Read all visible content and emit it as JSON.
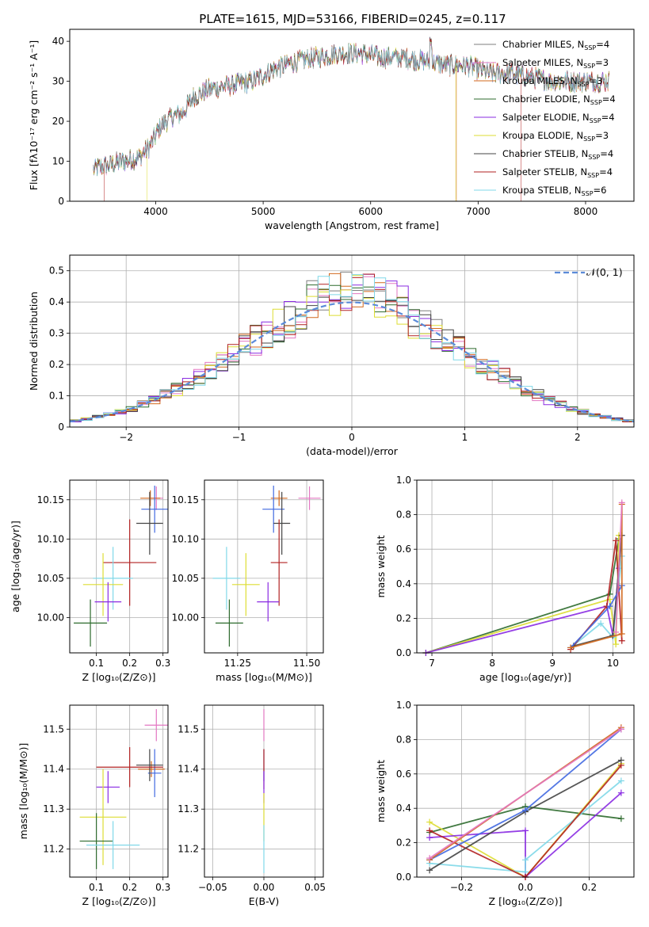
{
  "figure": {
    "title": "PLATE=1615, MJD=53166, FIBERID=0245, z=0.117"
  },
  "palette": [
    "#7f7f7f",
    "#e377c2",
    "#d2691e",
    "#2e6b2e",
    "#8a2be2",
    "#dddd33",
    "#444444",
    "#b22222",
    "#80d8e8"
  ],
  "chart_data": [
    {
      "id": "spectrum",
      "type": "line",
      "title": "PLATE=1615, MJD=53166, FIBERID=0245, z=0.117",
      "xlabel": "wavelength [Angstrom, rest frame]",
      "ylabel": "Flux [fλ10⁻¹⁷ erg cm⁻² s⁻¹ A⁻¹]",
      "xlim": [
        3200,
        8450
      ],
      "ylim": [
        0,
        43
      ],
      "xticks": [
        4000,
        5000,
        6000,
        7000,
        8000
      ],
      "yticks": [
        0,
        10,
        20,
        30,
        40
      ],
      "grid": false,
      "legend": "top-right",
      "continuum": {
        "x": [
          3420,
          3550,
          3700,
          3850,
          3950,
          4050,
          4150,
          4250,
          4350,
          4500,
          4700,
          4900,
          5100,
          5300,
          5500,
          5700,
          5900,
          6100,
          6300,
          6500,
          6700,
          6900,
          7100,
          7300,
          7500,
          7700,
          7900,
          8100,
          8200
        ],
        "y": [
          8,
          9,
          10,
          11,
          14,
          19,
          21,
          22,
          26,
          28,
          29,
          30,
          33,
          35,
          36,
          37,
          37,
          36,
          36,
          35,
          34,
          34,
          32,
          32,
          31,
          30,
          30,
          30,
          30
        ]
      },
      "series": [
        {
          "name": "Chabrier MILES, N_SSP=4",
          "label_main": "Chabrier MILES, N",
          "label_sub": "SSP",
          "label_tail": "=4",
          "color": "#7f7f7f"
        },
        {
          "name": "Salpeter MILES, N_SSP=3",
          "label_main": "Salpeter MILES, N",
          "label_sub": "SSP",
          "label_tail": "=3",
          "color": "#e377c2"
        },
        {
          "name": "Kroupa MILES, N_SSP=3",
          "label_main": "Kroupa MILES, N",
          "label_sub": "SSP",
          "label_tail": "=3",
          "color": "#d2691e"
        },
        {
          "name": "Chabrier ELODIE, N_SSP=4",
          "label_main": "Chabrier ELODIE, N",
          "label_sub": "SSP",
          "label_tail": "=4",
          "color": "#2e6b2e"
        },
        {
          "name": "Salpeter ELODIE, N_SSP=4",
          "label_main": "Salpeter ELODIE, N",
          "label_sub": "SSP",
          "label_tail": "=4",
          "color": "#8a2be2"
        },
        {
          "name": "Kroupa ELODIE, N_SSP=3",
          "label_main": "Kroupa ELODIE, N",
          "label_sub": "SSP",
          "label_tail": "=3",
          "color": "#dddd33"
        },
        {
          "name": "Chabrier STELIB, N_SSP=4",
          "label_main": "Chabrier STELIB, N",
          "label_sub": "SSP",
          "label_tail": "=4",
          "color": "#444444"
        },
        {
          "name": "Salpeter STELIB, N_SSP=4",
          "label_main": "Salpeter STELIB, N",
          "label_sub": "SSP",
          "label_tail": "=4",
          "color": "#b22222"
        },
        {
          "name": "Kroupa STELIB, N_SSP=6",
          "label_main": "Kroupa STELIB, N",
          "label_sub": "SSP",
          "label_tail": "=6",
          "color": "#80d8e8"
        }
      ],
      "drops": [
        {
          "x": 3520,
          "series": 7
        },
        {
          "x": 3920,
          "series": 5
        },
        {
          "x": 6790,
          "series": 5
        },
        {
          "x": 6800,
          "series": 2
        },
        {
          "x": 7400,
          "series": 7
        }
      ]
    },
    {
      "id": "residuals",
      "type": "histogram",
      "xlabel": "(data-model)/error",
      "ylabel": "Normed distribution",
      "xlim": [
        -2.5,
        2.5
      ],
      "ylim": [
        0,
        0.55
      ],
      "xticks": [
        -2,
        -1,
        0,
        1,
        2
      ],
      "yticks": [
        0.0,
        0.1,
        0.2,
        0.3,
        0.4,
        0.5
      ],
      "grid": true,
      "legend": "top-right",
      "bin_width": 0.1,
      "bin_start": -2.5,
      "gaussian": {
        "label": "𝒩(0, 1)",
        "mean": 0,
        "sigma": 1
      }
    },
    {
      "id": "age_vs_Z",
      "type": "errorbar",
      "xlabel": "Z [log₁₀(Z/Z⊙)]",
      "ylabel": "age  [log₁₀(age/yr)]",
      "xlim": [
        0.02,
        0.315
      ],
      "ylim": [
        9.955,
        10.175
      ],
      "xticks": [
        0.1,
        0.2,
        0.3
      ],
      "yticks": [
        10.0,
        10.05,
        10.1,
        10.15
      ],
      "xtick_labels": [
        "0.1",
        "0.2",
        "0.3"
      ],
      "ytick_labels": [
        "10.00",
        "10.05",
        "10.10",
        "10.15"
      ],
      "points": [
        {
          "x": 0.28,
          "y": 10.152,
          "xerr": 0.02,
          "yerr": 0.015,
          "color": "#e377c2"
        },
        {
          "x": 0.262,
          "y": 10.152,
          "xerr": 0.03,
          "yerr": 0.01,
          "color": "#d2691e"
        },
        {
          "x": 0.275,
          "y": 10.138,
          "xerr": 0.04,
          "yerr": 0.03,
          "color": "#4169e1"
        },
        {
          "x": 0.26,
          "y": 10.12,
          "xerr": 0.04,
          "yerr": 0.04,
          "color": "#444444"
        },
        {
          "x": 0.2,
          "y": 10.07,
          "xerr": 0.08,
          "yerr": 0.055,
          "color": "#b22222"
        },
        {
          "x": 0.15,
          "y": 10.05,
          "xerr": 0.06,
          "yerr": 0.04,
          "color": "#80d8e8"
        },
        {
          "x": 0.12,
          "y": 10.042,
          "xerr": 0.06,
          "yerr": 0.04,
          "color": "#dddd33"
        },
        {
          "x": 0.135,
          "y": 10.02,
          "xerr": 0.04,
          "yerr": 0.025,
          "color": "#8a2be2"
        },
        {
          "x": 0.082,
          "y": 9.993,
          "xerr": 0.05,
          "yerr": 0.03,
          "color": "#2e6b2e"
        }
      ]
    },
    {
      "id": "age_vs_mass",
      "type": "errorbar",
      "xlabel": "mass [log₁₀(M/M⊙)]",
      "ylabel": "",
      "xlim": [
        11.13,
        11.56
      ],
      "ylim": [
        9.955,
        10.175
      ],
      "xticks": [
        11.25,
        11.5
      ],
      "yticks": [
        10.0,
        10.05,
        10.1,
        10.15
      ],
      "xtick_labels": [
        "11.25",
        "11.50"
      ],
      "ytick_labels": [
        "10.00",
        "10.05",
        "10.10",
        "10.15"
      ],
      "points": [
        {
          "x": 11.51,
          "y": 10.152,
          "xerr": 0.04,
          "yerr": 0.015,
          "color": "#e377c2"
        },
        {
          "x": 11.4,
          "y": 10.152,
          "xerr": 0.03,
          "yerr": 0.01,
          "color": "#d2691e"
        },
        {
          "x": 11.38,
          "y": 10.138,
          "xerr": 0.04,
          "yerr": 0.03,
          "color": "#4169e1"
        },
        {
          "x": 11.41,
          "y": 10.12,
          "xerr": 0.03,
          "yerr": 0.04,
          "color": "#444444"
        },
        {
          "x": 11.4,
          "y": 10.07,
          "xerr": 0.03,
          "yerr": 0.055,
          "color": "#b22222"
        },
        {
          "x": 11.21,
          "y": 10.05,
          "xerr": 0.05,
          "yerr": 0.04,
          "color": "#80d8e8"
        },
        {
          "x": 11.28,
          "y": 10.042,
          "xerr": 0.05,
          "yerr": 0.04,
          "color": "#dddd33"
        },
        {
          "x": 11.36,
          "y": 10.02,
          "xerr": 0.04,
          "yerr": 0.025,
          "color": "#8a2be2"
        },
        {
          "x": 11.22,
          "y": 9.993,
          "xerr": 0.05,
          "yerr": 0.03,
          "color": "#2e6b2e"
        }
      ]
    },
    {
      "id": "mass_vs_Z",
      "type": "errorbar",
      "xlabel": "Z [log₁₀(Z/Z⊙)]",
      "ylabel": "mass [log₁₀(M/M⊙)]",
      "xlim": [
        0.02,
        0.315
      ],
      "ylim": [
        11.13,
        11.56
      ],
      "xticks": [
        0.1,
        0.2,
        0.3
      ],
      "yticks": [
        11.2,
        11.3,
        11.4,
        11.5
      ],
      "xtick_labels": [
        "0.1",
        "0.2",
        "0.3"
      ],
      "ytick_labels": [
        "11.2",
        "11.3",
        "11.4",
        "11.5"
      ],
      "points": [
        {
          "x": 0.28,
          "y": 11.51,
          "xerr": 0.035,
          "yerr": 0.04,
          "color": "#e377c2"
        },
        {
          "x": 0.265,
          "y": 11.4,
          "xerr": 0.04,
          "yerr": 0.02,
          "color": "#d2691e"
        },
        {
          "x": 0.275,
          "y": 11.39,
          "xerr": 0.02,
          "yerr": 0.06,
          "color": "#4169e1"
        },
        {
          "x": 0.26,
          "y": 11.41,
          "xerr": 0.04,
          "yerr": 0.04,
          "color": "#444444"
        },
        {
          "x": 0.2,
          "y": 11.405,
          "xerr": 0.1,
          "yerr": 0.05,
          "color": "#b22222"
        },
        {
          "x": 0.135,
          "y": 11.355,
          "xerr": 0.035,
          "yerr": 0.04,
          "color": "#8a2be2"
        },
        {
          "x": 0.12,
          "y": 11.28,
          "xerr": 0.07,
          "yerr": 0.12,
          "color": "#dddd33"
        },
        {
          "x": 0.1,
          "y": 11.22,
          "xerr": 0.05,
          "yerr": 0.07,
          "color": "#2e6b2e"
        },
        {
          "x": 0.15,
          "y": 11.21,
          "xerr": 0.08,
          "yerr": 0.06,
          "color": "#80d8e8"
        }
      ]
    },
    {
      "id": "mass_vs_ebv",
      "type": "errorbar",
      "xlabel": "E(B-V)",
      "ylabel": "",
      "xlim": [
        -0.058,
        0.058
      ],
      "ylim": [
        11.13,
        11.56
      ],
      "xticks": [
        -0.05,
        0.0,
        0.05
      ],
      "yticks": [
        11.2,
        11.3,
        11.4,
        11.5
      ],
      "xtick_labels": [
        "−0.05",
        "0.00",
        "0.05"
      ],
      "ytick_labels": [
        "11.2",
        "11.3",
        "11.4",
        "11.5"
      ],
      "points": [
        {
          "x": 0.0,
          "y": 11.51,
          "xerr": 0.0,
          "yerr": 0.04,
          "color": "#e377c2"
        },
        {
          "x": 0.0,
          "y": 11.41,
          "xerr": 0.0,
          "yerr": 0.04,
          "color": "#4169e1"
        },
        {
          "x": 0.0,
          "y": 11.4,
          "xerr": 0.0,
          "yerr": 0.05,
          "color": "#b22222"
        },
        {
          "x": 0.0,
          "y": 11.355,
          "xerr": 0.0,
          "yerr": 0.04,
          "color": "#8a2be2"
        },
        {
          "x": 0.0,
          "y": 11.28,
          "xerr": 0.0,
          "yerr": 0.06,
          "color": "#dddd33"
        },
        {
          "x": 0.0,
          "y": 11.2,
          "xerr": 0.0,
          "yerr": 0.06,
          "color": "#80d8e8"
        }
      ]
    },
    {
      "id": "weight_vs_age",
      "type": "line",
      "xlabel": "age  [log₁₀(age/yr)]",
      "ylabel": "mass weight",
      "xlim": [
        6.75,
        10.35
      ],
      "ylim": [
        0,
        1
      ],
      "xticks": [
        7,
        8,
        9,
        10
      ],
      "yticks": [
        0.0,
        0.2,
        0.4,
        0.6,
        0.8,
        1.0
      ],
      "xtick_labels": [
        "7",
        "8",
        "9",
        "10"
      ],
      "ytick_labels": [
        "0.0",
        "0.2",
        "0.4",
        "0.6",
        "0.8",
        "1.0"
      ],
      "grid": true,
      "series": [
        {
          "color": "#2e6b2e",
          "x": [
            6.9,
            9.95,
            10.1
          ],
          "y": [
            0.0,
            0.34,
            0.66
          ]
        },
        {
          "color": "#dddd33",
          "x": [
            6.9,
            9.95,
            10.05,
            10.1
          ],
          "y": [
            0.0,
            0.31,
            0.05,
            0.68
          ]
        },
        {
          "color": "#8a2be2",
          "x": [
            6.9,
            9.9,
            10.0,
            10.1
          ],
          "y": [
            0.0,
            0.27,
            0.1,
            0.49
          ]
        },
        {
          "color": "#80d8e8",
          "x": [
            9.3,
            9.8,
            10.0,
            10.15
          ],
          "y": [
            0.03,
            0.17,
            0.09,
            0.56
          ]
        },
        {
          "color": "#b22222",
          "x": [
            9.3,
            9.9,
            10.05,
            10.15
          ],
          "y": [
            0.02,
            0.27,
            0.65,
            0.07
          ]
        },
        {
          "color": "#444444",
          "x": [
            9.35,
            10.0,
            10.15
          ],
          "y": [
            0.04,
            0.1,
            0.68
          ]
        },
        {
          "color": "#4169e1",
          "x": [
            9.3,
            9.95,
            10.15
          ],
          "y": [
            0.03,
            0.27,
            0.39
          ]
        },
        {
          "color": "#d2691e",
          "x": [
            9.3,
            10.15,
            10.15
          ],
          "y": [
            0.03,
            0.11,
            0.86
          ]
        },
        {
          "color": "#e377c2",
          "x": [
            10.05,
            10.15
          ],
          "y": [
            0.12,
            0.87
          ]
        }
      ]
    },
    {
      "id": "weight_vs_Z",
      "type": "line",
      "xlabel": "Z [log₁₀(Z/Z⊙)]",
      "ylabel": "mass weight",
      "xlim": [
        -0.34,
        0.34
      ],
      "ylim": [
        0,
        1
      ],
      "xticks": [
        -0.2,
        0.0,
        0.2
      ],
      "yticks": [
        0.0,
        0.2,
        0.4,
        0.6,
        0.8,
        1.0
      ],
      "xtick_labels": [
        "−0.2",
        "0.0",
        "0.2"
      ],
      "ytick_labels": [
        "0.0",
        "0.2",
        "0.4",
        "0.6",
        "0.8",
        "1.0"
      ],
      "grid": true,
      "series": [
        {
          "color": "#2e6b2e",
          "x": [
            -0.3,
            0.0,
            0.3
          ],
          "y": [
            0.26,
            0.41,
            0.34
          ]
        },
        {
          "color": "#dddd33",
          "x": [
            -0.3,
            0.0,
            0.3
          ],
          "y": [
            0.32,
            0.0,
            0.66
          ]
        },
        {
          "color": "#8a2be2",
          "x": [
            -0.3,
            0.0,
            0.0,
            0.3
          ],
          "y": [
            0.23,
            0.27,
            0.0,
            0.49
          ]
        },
        {
          "color": "#80d8e8",
          "x": [
            -0.3,
            0.0,
            0.0,
            0.3
          ],
          "y": [
            0.08,
            0.03,
            0.1,
            0.56
          ]
        },
        {
          "color": "#b22222",
          "x": [
            -0.3,
            0.0,
            0.3
          ],
          "y": [
            0.27,
            0.0,
            0.65
          ]
        },
        {
          "color": "#444444",
          "x": [
            -0.3,
            0.0,
            0.3
          ],
          "y": [
            0.04,
            0.38,
            0.68
          ]
        },
        {
          "color": "#4169e1",
          "x": [
            -0.3,
            0.0,
            0.3
          ],
          "y": [
            0.1,
            0.39,
            0.86
          ]
        },
        {
          "color": "#d2691e",
          "x": [
            -0.3,
            0.3
          ],
          "y": [
            0.1,
            0.87
          ]
        },
        {
          "color": "#e377c2",
          "x": [
            -0.3,
            0.3
          ],
          "y": [
            0.11,
            0.86
          ]
        }
      ]
    }
  ]
}
